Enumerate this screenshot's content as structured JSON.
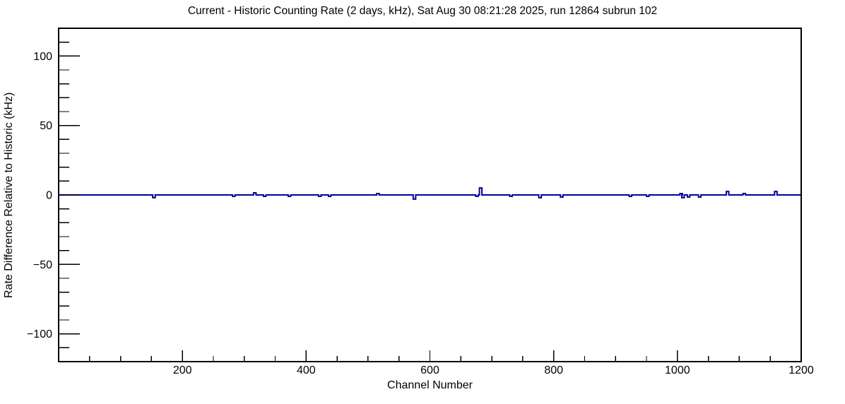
{
  "chart_data": {
    "type": "line",
    "title": "Current - Historic Counting Rate (2 days, kHz), Sat Aug 30 08:21:28 2025, run 12864 subrun 102",
    "xlabel": "Channel Number",
    "ylabel": "Rate Difference Relative to Historic (kHz)",
    "xlim": [
      0,
      1200
    ],
    "ylim": [
      -120,
      120
    ],
    "x_major_ticks": [
      200,
      400,
      600,
      800,
      1000,
      1200
    ],
    "x_minor_step": 50,
    "y_major_ticks": [
      -100,
      -50,
      0,
      50,
      100
    ],
    "y_minor_step": 10,
    "grid": false,
    "legend_position": "none",
    "axis_color": "#000000",
    "line_color": "#000099",
    "background_color": "#ffffff",
    "series": [
      {
        "name": "rate-difference-histogram",
        "baseline": 0,
        "bin_width_channels": 4,
        "spikes": [
          {
            "channel": 154,
            "value": -2.0
          },
          {
            "channel": 283,
            "value": -1.0
          },
          {
            "channel": 317,
            "value": 1.5
          },
          {
            "channel": 333,
            "value": -1.0
          },
          {
            "channel": 373,
            "value": -1.0
          },
          {
            "channel": 422,
            "value": -1.0
          },
          {
            "channel": 438,
            "value": -1.0
          },
          {
            "channel": 516,
            "value": 1.0
          },
          {
            "channel": 575,
            "value": -3.0
          },
          {
            "channel": 676,
            "value": -1.0
          },
          {
            "channel": 682,
            "value": 5.0
          },
          {
            "channel": 731,
            "value": -1.0
          },
          {
            "channel": 778,
            "value": -2.0
          },
          {
            "channel": 813,
            "value": -1.5
          },
          {
            "channel": 924,
            "value": -1.0
          },
          {
            "channel": 952,
            "value": -1.0
          },
          {
            "channel": 1006,
            "value": 1.0
          },
          {
            "channel": 1009,
            "value": -2.0
          },
          {
            "channel": 1018,
            "value": -1.5
          },
          {
            "channel": 1036,
            "value": -1.5
          },
          {
            "channel": 1081,
            "value": 2.5
          },
          {
            "channel": 1108,
            "value": 1.0
          },
          {
            "channel": 1159,
            "value": 2.5
          }
        ]
      }
    ]
  }
}
